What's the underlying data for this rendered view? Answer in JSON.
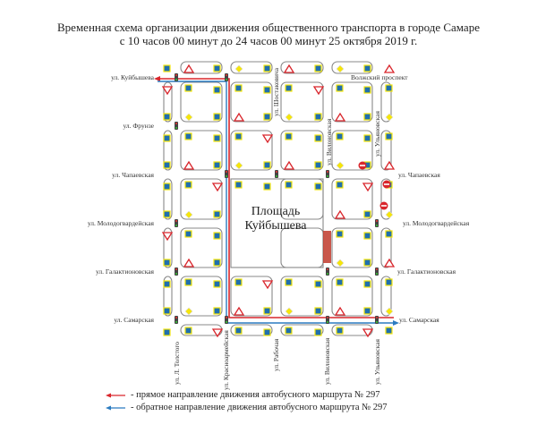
{
  "title": {
    "line1": "Временная схема организации движения общественного транспорта в городе Самаре",
    "line2": "с 10 часов 00 минут до 24 часов 00 минут 25 октября 2019 г."
  },
  "square_label": {
    "line1": "Площадь",
    "line2": "Куйбышева"
  },
  "streets": {
    "kuibysheva": "ул. Куйбышева",
    "volzhsky": "Волжский проспект",
    "frunze": "ул. Фрунзе",
    "chapaevskaya_w": "ул. Чапаевская",
    "chapaevskaya_e": "ул. Чапаевская",
    "molodogvardeyskaya_w": "ул. Молодогвардейская",
    "molodogvardeyskaya_e": "ул. Молодогвардейская",
    "galaktionovskaya_w": "ул. Галактионовская",
    "galaktionovskaya_e": "ул. Галактионовская",
    "samarskaya_w": "ул. Самарская",
    "samarskaya_e": "ул. Самарская",
    "l_tolstogo": "ул. Л. Толстого",
    "krasnoarmeyskaya": "ул. Красноармейская",
    "rabochaya": "ул. Рабочая",
    "vilonovskaya_s": "ул. Вилоновская",
    "ulyanovskaya_s": "ул. Ульяновская",
    "shostakovicha": "ул. Шостаковича",
    "vilonovskaya_n": "ул. Вилоновская",
    "ulyanovskaya_n": "ул. Ульяновская"
  },
  "legend": [
    {
      "color": "#d9262c",
      "text": "- прямое направление движения автобусного маршрута № 297"
    },
    {
      "color": "#2b7bc0",
      "text": "- обратное направление движения автобусного маршрута № 297"
    }
  ],
  "colors": {
    "road": "#888888",
    "route_forward": "#d9262c",
    "route_backward": "#2b7bc0",
    "sign_blue": "#1f6fae",
    "sign_yellow": "#f5e50a",
    "closed_area": "#c0392b"
  },
  "icons": [
    "road-sign-icon",
    "priority-road-icon",
    "give-way-icon",
    "no-entry-icon",
    "traffic-light-icon",
    "pedestrian-crossing-icon"
  ]
}
